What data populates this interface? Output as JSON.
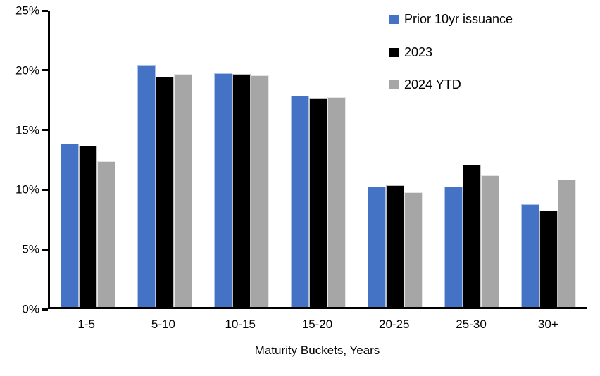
{
  "chart_data": {
    "type": "bar",
    "title": "",
    "categories": [
      "1-5",
      "5-10",
      "10-15",
      "15-20",
      "20-25",
      "25-30",
      "30+"
    ],
    "series": [
      {
        "name": "Prior 10yr issuance",
        "color": "#4472C4",
        "border_color": "#AEC3E8",
        "values": [
          13.7,
          20.2,
          19.6,
          17.7,
          10.1,
          10.1,
          8.6
        ]
      },
      {
        "name": "2023",
        "color": "#000000",
        "border_color": "#BFBFBF",
        "values": [
          13.5,
          19.3,
          19.5,
          17.5,
          10.2,
          11.9,
          8.1
        ]
      },
      {
        "name": "2024 YTD",
        "color": "#A6A6A6",
        "border_color": "#E7E6E6",
        "values": [
          12.2,
          19.5,
          19.4,
          17.6,
          9.6,
          11.0,
          10.7
        ]
      }
    ],
    "xlabel": "Maturity Buckets, Years",
    "ylabel": "",
    "ylim": [
      0,
      25
    ],
    "ytick_step": 5,
    "ytick_labels": [
      "0%",
      "5%",
      "10%",
      "15%",
      "20%",
      "25%"
    ],
    "grid": false,
    "legend_position": "top-right",
    "axis_color": "#000000",
    "background_color": "#FFFFFF"
  }
}
